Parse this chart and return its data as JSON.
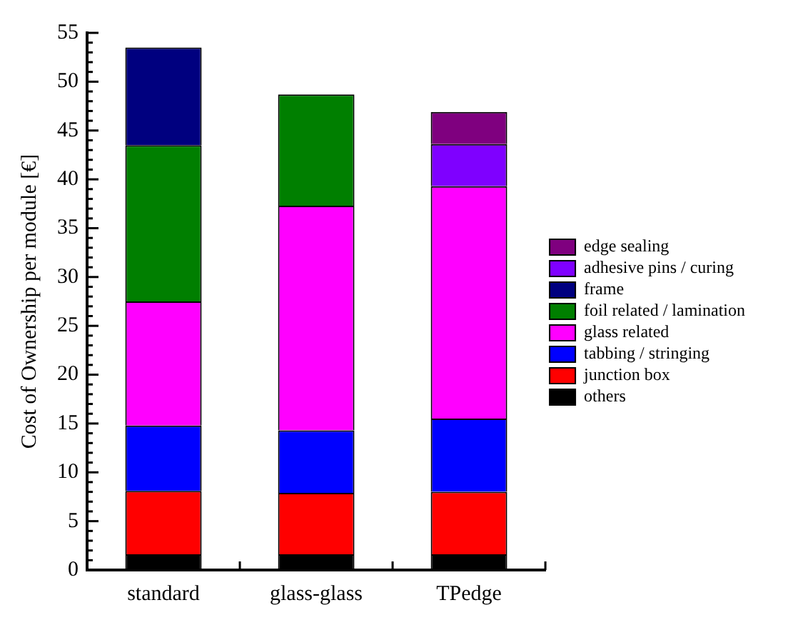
{
  "chart_data": {
    "type": "bar",
    "stacked": true,
    "ylabel": "Cost of Ownership per module [€]",
    "categories": [
      "standard",
      "glass-glass",
      "TPedge"
    ],
    "series": [
      {
        "name": "others",
        "color": "#000000",
        "values": [
          1.6,
          1.6,
          1.6
        ]
      },
      {
        "name": "junction box",
        "color": "#ff0000",
        "values": [
          6.5,
          6.3,
          6.4
        ]
      },
      {
        "name": "tabbing / stringing",
        "color": "#0000ff",
        "values": [
          6.7,
          6.4,
          7.5
        ]
      },
      {
        "name": "glass related",
        "color": "#ff00ff",
        "values": [
          12.7,
          23.0,
          23.8
        ]
      },
      {
        "name": "foil related / lamination",
        "color": "#007f00",
        "values": [
          16.0,
          11.4,
          null
        ]
      },
      {
        "name": "frame",
        "color": "#00007f",
        "values": [
          10.0,
          null,
          null
        ]
      },
      {
        "name": "adhesive pins / curing",
        "color": "#7f00ff",
        "values": [
          null,
          null,
          4.3
        ]
      },
      {
        "name": "edge sealing",
        "color": "#7f007f",
        "values": [
          null,
          null,
          3.3
        ]
      }
    ],
    "ylim": [
      0,
      55
    ],
    "yticks": [
      0,
      {
        "value": 1,
        "label": null
      },
      {
        "value": 2,
        "label": null
      },
      {
        "value": 3,
        "label": null
      },
      {
        "value": 4,
        "label": null
      },
      5,
      {
        "value": 6,
        "label": null
      },
      {
        "value": 7,
        "label": null
      },
      {
        "value": 8,
        "label": null
      },
      {
        "value": 9,
        "label": null
      },
      10,
      {
        "value": 11,
        "label": null
      },
      {
        "value": 12,
        "label": null
      },
      {
        "value": 13,
        "label": null
      },
      {
        "value": 14,
        "label": null
      },
      15,
      {
        "value": 16,
        "label": null
      },
      {
        "value": 17,
        "label": null
      },
      {
        "value": 18,
        "label": null
      },
      {
        "value": 19,
        "label": null
      },
      20,
      {
        "value": 21,
        "label": null
      },
      {
        "value": 22,
        "label": null
      },
      {
        "value": 23,
        "label": null
      },
      {
        "value": 24,
        "label": null
      },
      25,
      {
        "value": 26,
        "label": null
      },
      {
        "value": 27,
        "label": null
      },
      {
        "value": 28,
        "label": null
      },
      {
        "value": 29,
        "label": null
      },
      30,
      {
        "value": 31,
        "label": null
      },
      {
        "value": 32,
        "label": null
      },
      {
        "value": 33,
        "label": null
      },
      {
        "value": 34,
        "label": null
      },
      35,
      {
        "value": 36,
        "label": null
      },
      {
        "value": 37,
        "label": null
      },
      {
        "value": 38,
        "label": null
      },
      {
        "value": 39,
        "label": null
      },
      40,
      {
        "value": 41,
        "label": null
      },
      {
        "value": 42,
        "label": null
      },
      {
        "value": 43,
        "label": null
      },
      {
        "value": 44,
        "label": null
      },
      45,
      {
        "value": 46,
        "label": null
      },
      {
        "value": 47,
        "label": null
      },
      {
        "value": 48,
        "label": null
      },
      {
        "value": 49,
        "label": null
      },
      50,
      {
        "value": 51,
        "label": null
      },
      {
        "value": 52,
        "label": null
      },
      {
        "value": 53,
        "label": null
      },
      {
        "value": 54,
        "label": null
      },
      55
    ],
    "grid": false,
    "legend": "right"
  }
}
